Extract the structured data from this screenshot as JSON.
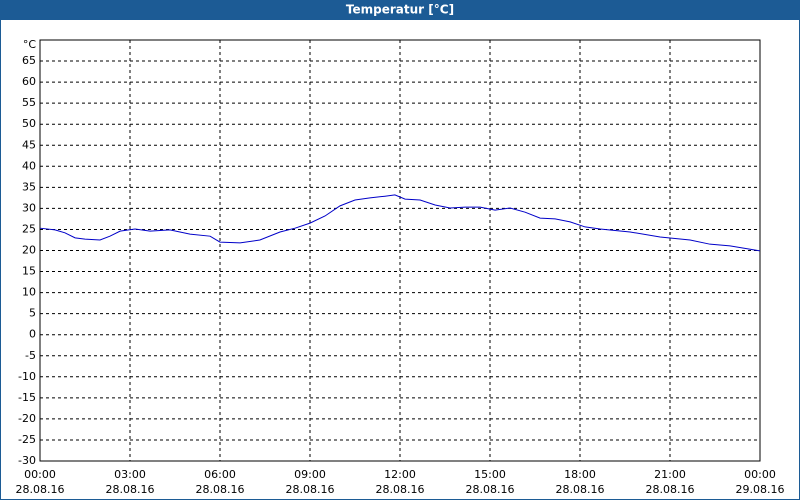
{
  "chart_data": {
    "type": "line",
    "title": "Temperatur [°C]",
    "y_unit": "°C",
    "x": [
      0,
      0.5,
      0.83,
      1.17,
      1.5,
      2,
      2.33,
      2.67,
      3.17,
      3.67,
      4.33,
      5,
      5.67,
      6,
      6.67,
      7.33,
      8,
      8.5,
      9,
      9.5,
      10,
      10.5,
      11,
      11.5,
      11.83,
      12.17,
      12.67,
      13.17,
      13.67,
      14.17,
      14.67,
      15.17,
      15.67,
      16.17,
      16.67,
      17.17,
      17.67,
      18.17,
      18.67,
      19.67,
      20.67,
      21.67,
      22.33,
      23,
      24
    ],
    "series": [
      {
        "color": "#0000c8",
        "values": [
          25.3,
          24.9,
          24.2,
          23,
          22.7,
          22.5,
          23.4,
          24.6,
          25.1,
          24.6,
          24.9,
          23.9,
          23.4,
          22,
          21.8,
          22.5,
          24.4,
          25.3,
          26.5,
          28.2,
          30.6,
          32,
          32.5,
          32.9,
          33.2,
          32.2,
          32,
          30.8,
          30.1,
          30.3,
          30.3,
          29.6,
          30.1,
          29.1,
          27.7,
          27.5,
          26.8,
          25.6,
          25.1,
          24.4,
          23.2,
          22.5,
          21.5,
          21.1,
          19.9
        ]
      }
    ],
    "xlim": [
      0,
      24
    ],
    "xticks": [
      {
        "value": 0,
        "label": "00:00",
        "date": "28.08.16"
      },
      {
        "value": 3,
        "label": "03:00",
        "date": "28.08.16"
      },
      {
        "value": 6,
        "label": "06:00",
        "date": "28.08.16"
      },
      {
        "value": 9,
        "label": "09:00",
        "date": "28.08.16"
      },
      {
        "value": 12,
        "label": "12:00",
        "date": "28.08.16"
      },
      {
        "value": 15,
        "label": "15:00",
        "date": "28.08.16"
      },
      {
        "value": 18,
        "label": "18:00",
        "date": "28.08.16"
      },
      {
        "value": 21,
        "label": "21:00",
        "date": "28.08.16"
      },
      {
        "value": 24,
        "label": "00:00",
        "date": "29.08.16"
      }
    ],
    "ylim": [
      -30,
      70
    ],
    "yticks": [
      -30,
      -25,
      -20,
      -15,
      -10,
      -5,
      0,
      5,
      10,
      15,
      20,
      25,
      30,
      35,
      40,
      45,
      50,
      55,
      60,
      65
    ],
    "grid": true
  }
}
